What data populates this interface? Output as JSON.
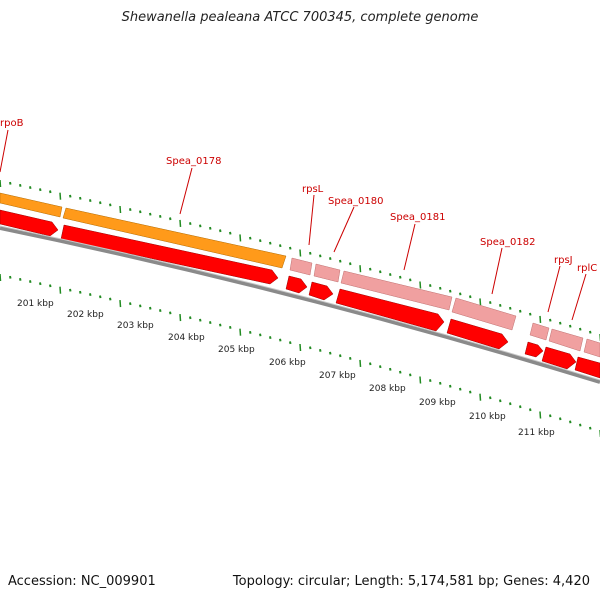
{
  "title": "Shewanella pealeana ATCC 700345, complete genome",
  "footer": {
    "accession": "Accession: NC_009901",
    "topology": "Topology: circular; Length: 5,174,581 bp; Genes: 4,420"
  },
  "colors": {
    "gene_orange": "#ff9a1a",
    "gene_pink": "#f0a0a0",
    "cds_red": "#ff0000",
    "backbone": "#8a8a8a",
    "tick_green": "#228b22",
    "label_red": "#cc0000"
  },
  "gene_labels": [
    "rpoB",
    "Spea_0178",
    "rpsL",
    "Spea_0180",
    "Spea_0181",
    "Spea_0182",
    "rpsJ",
    "rplC"
  ],
  "kbp_labels": [
    "201 kbp",
    "202 kbp",
    "203 kbp",
    "204 kbp",
    "205 kbp",
    "206 kbp",
    "207 kbp",
    "208 kbp",
    "209 kbp",
    "210 kbp",
    "211 kbp"
  ]
}
